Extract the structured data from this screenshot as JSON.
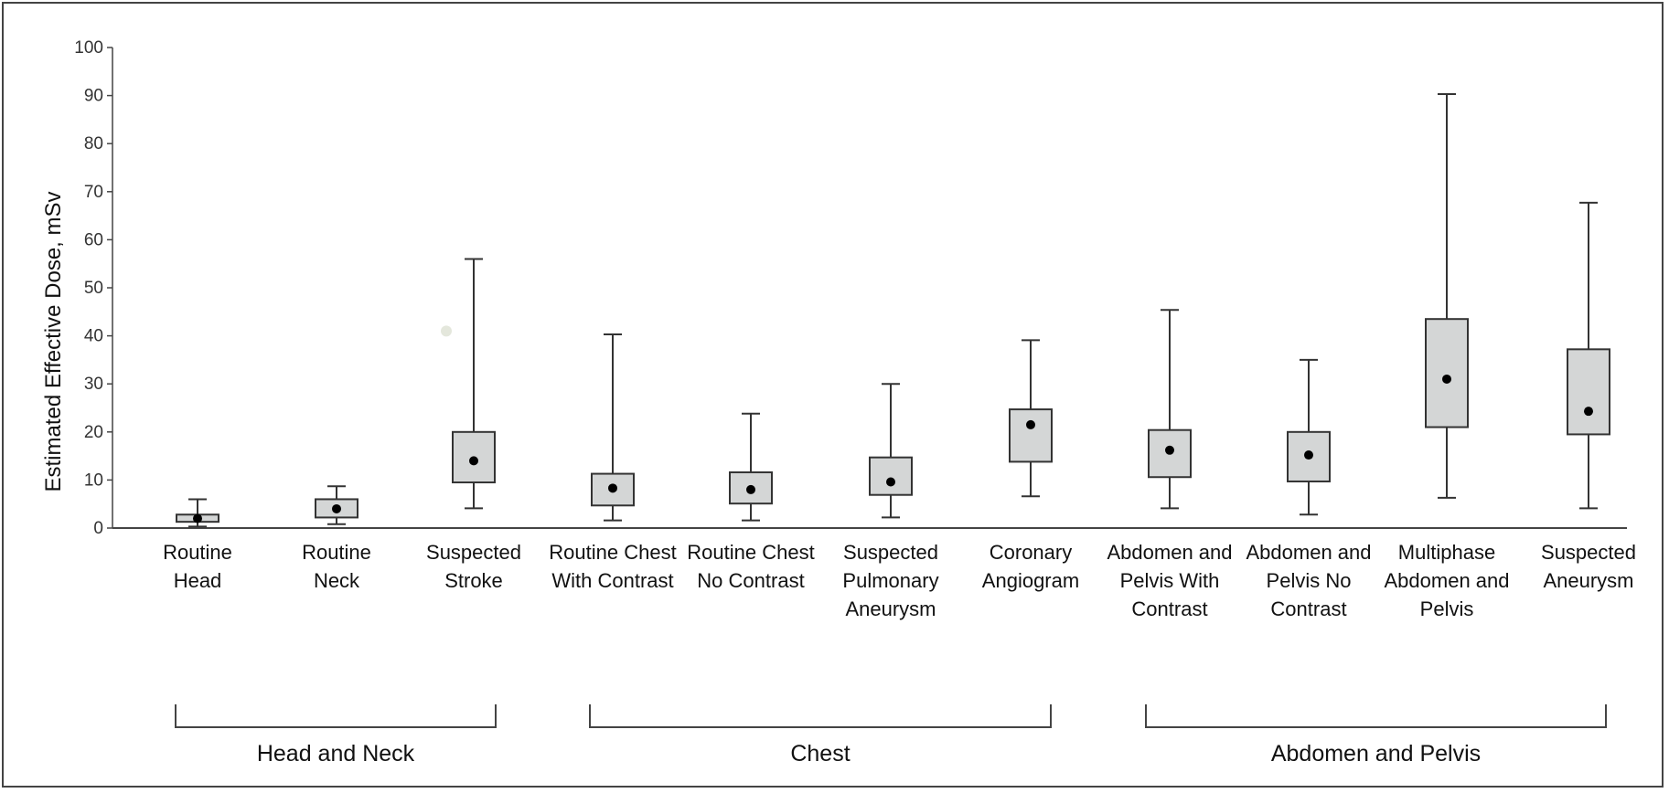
{
  "chart_data": {
    "type": "boxplot",
    "ylabel": "Estimated Effective Dose, mSv",
    "ylim": [
      0,
      100
    ],
    "yticks": [
      0,
      10,
      20,
      30,
      40,
      50,
      60,
      70,
      80,
      90,
      100
    ],
    "categories": [
      {
        "label": [
          "Routine",
          "Head"
        ],
        "min": 0.3,
        "q1": 1.3,
        "median": 2,
        "q3": 2.8,
        "max": 6
      },
      {
        "label": [
          "Routine",
          "Neck"
        ],
        "min": 0.8,
        "q1": 2.2,
        "median": 4,
        "q3": 6,
        "max": 8.7
      },
      {
        "label": [
          "Suspected",
          "Stroke"
        ],
        "min": 4.1,
        "q1": 9.5,
        "median": 14,
        "q3": 20,
        "max": 56,
        "outliers": [
          41
        ]
      },
      {
        "label": [
          "Routine Chest",
          "With Contrast"
        ],
        "min": 1.6,
        "q1": 4.7,
        "median": 8.3,
        "q3": 11.3,
        "max": 40.3
      },
      {
        "label": [
          "Routine Chest",
          "No Contrast"
        ],
        "min": 1.6,
        "q1": 5.1,
        "median": 8,
        "q3": 11.6,
        "max": 23.8
      },
      {
        "label": [
          "Suspected",
          "Pulmonary",
          "Aneurysm"
        ],
        "min": 2.2,
        "q1": 6.9,
        "median": 9.6,
        "q3": 14.7,
        "max": 30
      },
      {
        "label": [
          "Coronary",
          "Angiogram"
        ],
        "min": 6.6,
        "q1": 13.8,
        "median": 21.5,
        "q3": 24.7,
        "max": 39.1
      },
      {
        "label": [
          "Abdomen and",
          "Pelvis With",
          "Contrast"
        ],
        "min": 4.1,
        "q1": 10.6,
        "median": 16.2,
        "q3": 20.4,
        "max": 45.4
      },
      {
        "label": [
          "Abdomen and",
          "Pelvis No",
          "Contrast"
        ],
        "min": 2.8,
        "q1": 9.7,
        "median": 15.2,
        "q3": 20,
        "max": 35
      },
      {
        "label": [
          "Multiphase",
          "Abdomen and",
          "Pelvis"
        ],
        "min": 6.3,
        "q1": 21,
        "median": 31,
        "q3": 43.5,
        "max": 90.3
      },
      {
        "label": [
          "Suspected",
          "Aneurysm"
        ],
        "min": 4.1,
        "q1": 19.5,
        "median": 24.3,
        "q3": 37.2,
        "max": 67.7
      }
    ],
    "groups": [
      {
        "label": "Head and Neck",
        "from": 0,
        "to": 2
      },
      {
        "label": "Chest",
        "from": 3,
        "to": 6
      },
      {
        "label": "Abdomen and Pelvis",
        "from": 7,
        "to": 10
      }
    ],
    "colors": {
      "box_fill": "#d4d6d6",
      "box_stroke": "#333333",
      "median_dot": "#000000",
      "outlier": "#e4e7dc",
      "axis": "#444444"
    }
  }
}
